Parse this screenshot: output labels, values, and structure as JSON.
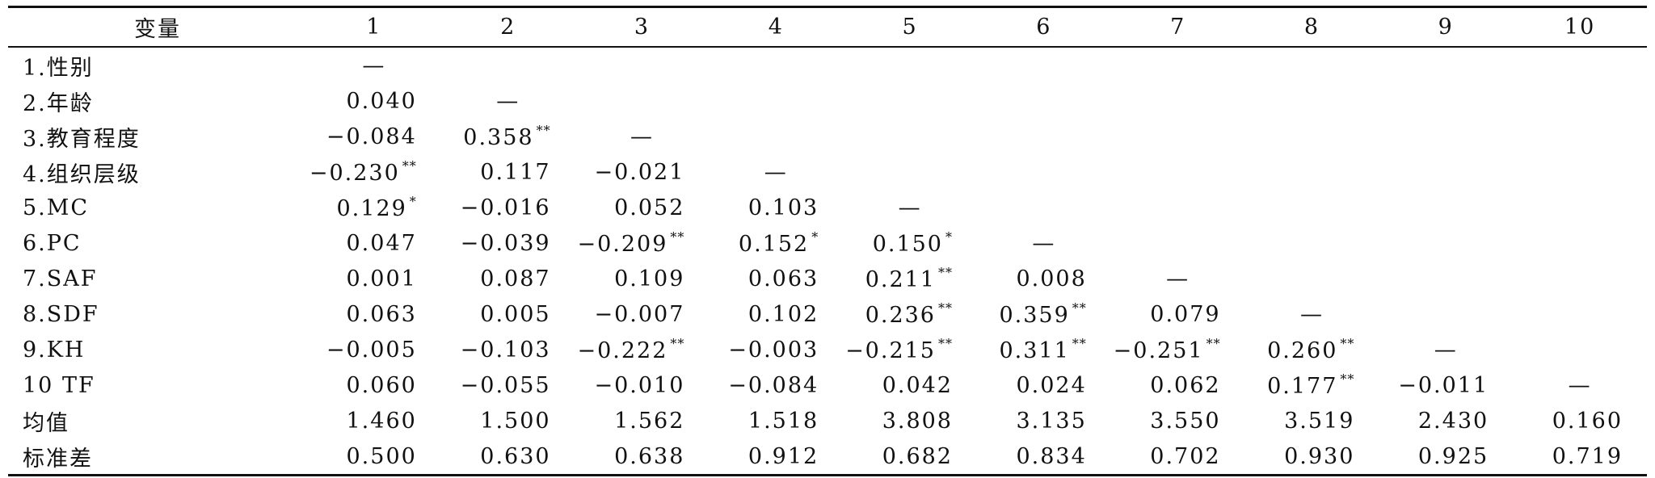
{
  "table": {
    "header": [
      "变量",
      "1",
      "2",
      "3",
      "4",
      "5",
      "6",
      "7",
      "8",
      "9",
      "10"
    ],
    "rows": [
      {
        "label": "1.性别",
        "cells": [
          {
            "v": "—"
          }
        ]
      },
      {
        "label": "2.年龄",
        "cells": [
          {
            "v": "0.040"
          },
          {
            "v": "—"
          }
        ]
      },
      {
        "label": "3.教育程度",
        "cells": [
          {
            "v": "−0.084"
          },
          {
            "v": "0.358",
            "sig": "**"
          },
          {
            "v": "—"
          }
        ]
      },
      {
        "label": "4.组织层级",
        "cells": [
          {
            "v": "−0.230",
            "sig": "**"
          },
          {
            "v": "0.117"
          },
          {
            "v": "−0.021"
          },
          {
            "v": "—"
          }
        ]
      },
      {
        "label": "5.MC",
        "cells": [
          {
            "v": "0.129",
            "sig": "*"
          },
          {
            "v": "−0.016"
          },
          {
            "v": "0.052"
          },
          {
            "v": "0.103"
          },
          {
            "v": "—"
          }
        ]
      },
      {
        "label": "6.PC",
        "cells": [
          {
            "v": "0.047"
          },
          {
            "v": "−0.039"
          },
          {
            "v": "−0.209",
            "sig": "**"
          },
          {
            "v": "0.152",
            "sig": "*"
          },
          {
            "v": "0.150",
            "sig": "*"
          },
          {
            "v": "—"
          }
        ]
      },
      {
        "label": "7.SAF",
        "cells": [
          {
            "v": "0.001"
          },
          {
            "v": "0.087"
          },
          {
            "v": "0.109"
          },
          {
            "v": "0.063"
          },
          {
            "v": "0.211",
            "sig": "**"
          },
          {
            "v": "0.008"
          },
          {
            "v": "—"
          }
        ]
      },
      {
        "label": "8.SDF",
        "cells": [
          {
            "v": "0.063"
          },
          {
            "v": "0.005"
          },
          {
            "v": "−0.007"
          },
          {
            "v": "0.102"
          },
          {
            "v": "0.236",
            "sig": "**"
          },
          {
            "v": "0.359",
            "sig": "**"
          },
          {
            "v": "0.079"
          },
          {
            "v": "—"
          }
        ]
      },
      {
        "label": "9.KH",
        "cells": [
          {
            "v": "−0.005"
          },
          {
            "v": "−0.103"
          },
          {
            "v": "−0.222",
            "sig": "**"
          },
          {
            "v": "−0.003"
          },
          {
            "v": "−0.215",
            "sig": "**"
          },
          {
            "v": "0.311",
            "sig": "**"
          },
          {
            "v": "−0.251",
            "sig": "**"
          },
          {
            "v": "0.260",
            "sig": "**"
          },
          {
            "v": "—"
          }
        ]
      },
      {
        "label": "10 TF",
        "cells": [
          {
            "v": "0.060"
          },
          {
            "v": "−0.055"
          },
          {
            "v": "−0.010"
          },
          {
            "v": "−0.084"
          },
          {
            "v": "0.042"
          },
          {
            "v": "0.024"
          },
          {
            "v": "0.062"
          },
          {
            "v": "0.177",
            "sig": "**"
          },
          {
            "v": "−0.011"
          },
          {
            "v": "—"
          }
        ]
      },
      {
        "label": "均值",
        "cells": [
          {
            "v": "1.460"
          },
          {
            "v": "1.500"
          },
          {
            "v": "1.562"
          },
          {
            "v": "1.518"
          },
          {
            "v": "3.808"
          },
          {
            "v": "3.135"
          },
          {
            "v": "3.550"
          },
          {
            "v": "3.519"
          },
          {
            "v": "2.430"
          },
          {
            "v": "0.160"
          }
        ]
      },
      {
        "label": "标准差",
        "cells": [
          {
            "v": "0.500"
          },
          {
            "v": "0.630"
          },
          {
            "v": "0.638"
          },
          {
            "v": "0.912"
          },
          {
            "v": "0.682"
          },
          {
            "v": "0.834"
          },
          {
            "v": "0.702"
          },
          {
            "v": "0.930"
          },
          {
            "v": "0.925"
          },
          {
            "v": "0.719"
          }
        ]
      }
    ]
  }
}
